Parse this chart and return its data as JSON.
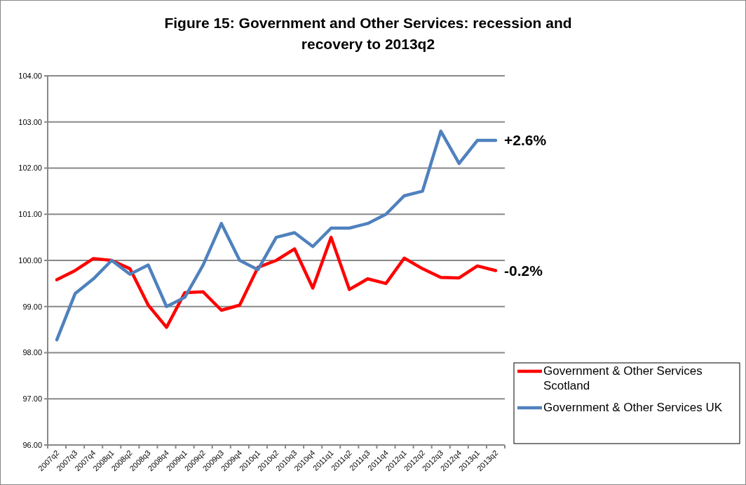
{
  "chart_data": {
    "type": "line",
    "title": "Figure 15: Government and Other Services: recession and recovery to 2013q2",
    "categories": [
      "2007q2",
      "2007q3",
      "2007q4",
      "2008q1",
      "2008q2",
      "2008q3",
      "2008q4",
      "2009q1",
      "2009q2",
      "2009q3",
      "2009q4",
      "2010q1",
      "2010q2",
      "2010q3",
      "2010q4",
      "2011q1",
      "2011q2",
      "2011q3",
      "2011q4",
      "2012q1",
      "2012q2",
      "2012q3",
      "2012q4",
      "2013q1",
      "2013q2"
    ],
    "series": [
      {
        "name": "Government & Other Services Scotland",
        "color": "#ff0000",
        "values": [
          99.58,
          99.78,
          100.04,
          100.0,
          99.82,
          99.03,
          98.55,
          99.3,
          99.32,
          98.92,
          99.03,
          99.85,
          100.0,
          100.25,
          99.4,
          100.5,
          99.37,
          99.6,
          99.5,
          100.05,
          99.82,
          99.63,
          99.62,
          99.88,
          99.78
        ]
      },
      {
        "name": "Government & Other Services UK",
        "color": "#4f81bd",
        "values": [
          98.28,
          99.28,
          99.6,
          100.0,
          99.7,
          99.9,
          99.0,
          99.2,
          99.9,
          100.8,
          100.0,
          99.8,
          100.5,
          100.6,
          100.3,
          100.7,
          100.7,
          100.8,
          101.0,
          101.4,
          101.5,
          102.8,
          102.1,
          102.6,
          102.6
        ]
      }
    ],
    "ylim": [
      96,
      104
    ],
    "yticks": [
      {
        "value": 96,
        "label": "96.00"
      },
      {
        "value": 97,
        "label": "97.00"
      },
      {
        "value": 98,
        "label": "98.00"
      },
      {
        "value": 99,
        "label": "99.00"
      },
      {
        "value": 100,
        "label": "100.00"
      },
      {
        "value": 101,
        "label": "101.00"
      },
      {
        "value": 102,
        "label": "102.00"
      },
      {
        "value": 103,
        "label": "103.00"
      },
      {
        "value": 104,
        "label": "104.00"
      }
    ],
    "grid": "y",
    "legend": "bottom right",
    "marker": "none",
    "line_style": "solid",
    "annotations": [
      {
        "text": "+2.6%",
        "x": "2013q2",
        "y": 102.6
      },
      {
        "text": "-0.2%",
        "x": "2013q2",
        "y": 99.78
      }
    ]
  }
}
